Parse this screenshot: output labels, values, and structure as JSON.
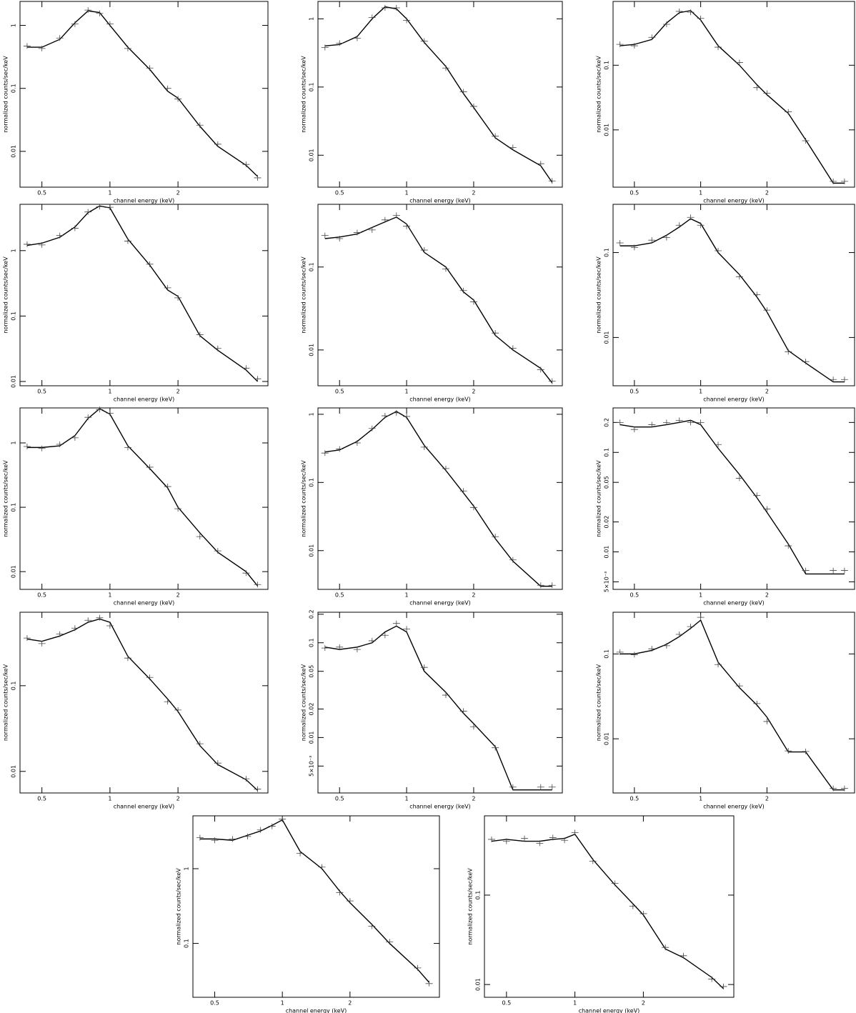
{
  "chart_data": [
    {
      "type": "line",
      "xlabel": "channel energy (keV)",
      "ylabel": "normalized counts/sec/keV",
      "log_x": true,
      "log_y": true,
      "xlim": [
        0.4,
        5
      ],
      "xticks": [
        0.5,
        1,
        2
      ],
      "ylim": [
        0.0027,
        2.4
      ],
      "yticks": [
        0.01,
        0.1,
        1
      ],
      "x": [
        0.43,
        0.5,
        0.6,
        0.7,
        0.8,
        0.9,
        1.0,
        1.2,
        1.5,
        1.8,
        2.0,
        2.5,
        3.0,
        4.0,
        4.5
      ],
      "series": [
        {
          "color": "#000000",
          "mode": "line",
          "values": [
            0.45,
            0.45,
            0.6,
            1.1,
            1.7,
            1.6,
            1.0,
            0.45,
            0.2,
            0.09,
            0.07,
            0.025,
            0.012,
            0.006,
            0.004
          ]
        },
        {
          "color": "#444444",
          "mode": "markers",
          "values": [
            0.47,
            0.43,
            0.63,
            1.05,
            1.75,
            1.55,
            1.05,
            0.43,
            0.21,
            0.1,
            0.068,
            0.026,
            0.013,
            0.0062,
            0.0038
          ]
        }
      ]
    },
    {
      "type": "line",
      "xlabel": "channel energy (keV)",
      "ylabel": "normalized counts/sec/keV",
      "log_x": true,
      "log_y": true,
      "xlim": [
        0.4,
        5
      ],
      "xticks": [
        0.5,
        1,
        2
      ],
      "ylim": [
        0.0034,
        1.8
      ],
      "yticks": [
        0.01,
        0.1,
        1
      ],
      "x": [
        0.43,
        0.5,
        0.6,
        0.7,
        0.8,
        0.9,
        1.0,
        1.2,
        1.5,
        1.8,
        2.0,
        2.5,
        3.0,
        4.0,
        4.5
      ],
      "series": [
        {
          "color": "#000000",
          "mode": "line",
          "values": [
            0.4,
            0.42,
            0.55,
            1.0,
            1.5,
            1.4,
            1.0,
            0.45,
            0.2,
            0.08,
            0.05,
            0.018,
            0.012,
            0.007,
            0.004
          ]
        },
        {
          "color": "#444444",
          "mode": "markers",
          "values": [
            0.38,
            0.44,
            0.52,
            1.05,
            1.45,
            1.45,
            0.95,
            0.47,
            0.19,
            0.085,
            0.052,
            0.019,
            0.013,
            0.0075,
            0.0042
          ]
        }
      ]
    },
    {
      "type": "line",
      "xlabel": "channel energy (keV)",
      "ylabel": "normalized counts/sec/keV",
      "log_x": true,
      "log_y": true,
      "xlim": [
        0.4,
        5
      ],
      "xticks": [
        0.5,
        1,
        2
      ],
      "ylim": [
        0.0013,
        0.97
      ],
      "yticks": [
        0.01,
        0.1
      ],
      "x": [
        0.43,
        0.5,
        0.6,
        0.7,
        0.8,
        0.9,
        1.0,
        1.2,
        1.5,
        1.8,
        2.0,
        2.5,
        3.0,
        4.0,
        4.5
      ],
      "series": [
        {
          "color": "#000000",
          "mode": "line",
          "values": [
            0.2,
            0.21,
            0.25,
            0.45,
            0.65,
            0.7,
            0.5,
            0.2,
            0.1,
            0.05,
            0.035,
            0.018,
            0.007,
            0.0015,
            0.0015
          ]
        },
        {
          "color": "#444444",
          "mode": "markers",
          "values": [
            0.21,
            0.2,
            0.27,
            0.43,
            0.68,
            0.66,
            0.53,
            0.19,
            0.11,
            0.045,
            0.037,
            0.019,
            0.0068,
            0.0016,
            0.0016
          ]
        }
      ]
    },
    {
      "type": "line",
      "xlabel": "channel energy (keV)",
      "ylabel": "normalized counts/sec/keV",
      "log_x": true,
      "log_y": true,
      "xlim": [
        0.4,
        5
      ],
      "xticks": [
        0.5,
        1,
        2
      ],
      "ylim": [
        0.0086,
        5.1
      ],
      "yticks": [
        0.01,
        0.1,
        1
      ],
      "x": [
        0.43,
        0.5,
        0.6,
        0.7,
        0.8,
        0.9,
        1.0,
        1.2,
        1.5,
        1.8,
        2.0,
        2.5,
        3.0,
        4.0,
        4.5
      ],
      "series": [
        {
          "color": "#000000",
          "mode": "line",
          "values": [
            1.2,
            1.3,
            1.6,
            2.3,
            3.8,
            4.8,
            4.5,
            1.5,
            0.6,
            0.25,
            0.2,
            0.05,
            0.03,
            0.015,
            0.01
          ]
        },
        {
          "color": "#444444",
          "mode": "markers",
          "values": [
            1.25,
            1.22,
            1.7,
            2.2,
            3.9,
            4.7,
            4.6,
            1.4,
            0.62,
            0.27,
            0.19,
            0.052,
            0.032,
            0.016,
            0.011
          ]
        }
      ]
    },
    {
      "type": "line",
      "xlabel": "channel energy (keV)",
      "ylabel": "normalized counts/sec/keV",
      "log_x": true,
      "log_y": true,
      "xlim": [
        0.4,
        5
      ],
      "xticks": [
        0.5,
        1,
        2
      ],
      "ylim": [
        0.0037,
        0.57
      ],
      "yticks": [
        0.01,
        0.1
      ],
      "x": [
        0.43,
        0.5,
        0.6,
        0.7,
        0.8,
        0.9,
        1.0,
        1.2,
        1.5,
        1.8,
        2.0,
        2.5,
        3.0,
        4.0,
        4.5
      ],
      "series": [
        {
          "color": "#000000",
          "mode": "line",
          "values": [
            0.22,
            0.23,
            0.25,
            0.3,
            0.35,
            0.4,
            0.33,
            0.15,
            0.1,
            0.05,
            0.04,
            0.015,
            0.01,
            0.006,
            0.004
          ]
        },
        {
          "color": "#444444",
          "mode": "markers",
          "values": [
            0.24,
            0.22,
            0.26,
            0.28,
            0.37,
            0.42,
            0.31,
            0.16,
            0.095,
            0.052,
            0.038,
            0.016,
            0.0105,
            0.0058,
            0.0042
          ]
        }
      ]
    },
    {
      "type": "line",
      "xlabel": "channel energy (keV)",
      "ylabel": "normalized counts/sec/keV",
      "log_x": true,
      "log_y": true,
      "xlim": [
        0.4,
        5
      ],
      "xticks": [
        0.5,
        1,
        2
      ],
      "ylim": [
        0.0027,
        0.37
      ],
      "yticks": [
        0.01,
        0.1
      ],
      "x": [
        0.43,
        0.5,
        0.6,
        0.7,
        0.8,
        0.9,
        1.0,
        1.2,
        1.5,
        1.8,
        2.0,
        2.5,
        3.0,
        4.0,
        4.5
      ],
      "series": [
        {
          "color": "#000000",
          "mode": "line",
          "values": [
            0.12,
            0.12,
            0.13,
            0.16,
            0.2,
            0.25,
            0.22,
            0.1,
            0.055,
            0.03,
            0.02,
            0.007,
            0.005,
            0.003,
            0.003
          ]
        },
        {
          "color": "#444444",
          "mode": "markers",
          "values": [
            0.13,
            0.115,
            0.14,
            0.15,
            0.21,
            0.26,
            0.21,
            0.105,
            0.052,
            0.032,
            0.021,
            0.0068,
            0.0052,
            0.0032,
            0.0032
          ]
        }
      ]
    },
    {
      "type": "line",
      "xlabel": "channel energy (keV)",
      "ylabel": "normalized counts/sec/keV",
      "log_x": true,
      "log_y": true,
      "xlim": [
        0.4,
        5
      ],
      "xticks": [
        0.5,
        1,
        2
      ],
      "ylim": [
        0.0053,
        3.5
      ],
      "yticks": [
        0.01,
        0.1,
        1
      ],
      "x": [
        0.43,
        0.5,
        0.6,
        0.7,
        0.8,
        0.9,
        1.0,
        1.2,
        1.5,
        1.8,
        2.0,
        2.5,
        3.0,
        4.0,
        4.5
      ],
      "series": [
        {
          "color": "#000000",
          "mode": "line",
          "values": [
            0.85,
            0.85,
            0.9,
            1.3,
            2.4,
            3.4,
            2.8,
            0.9,
            0.4,
            0.2,
            0.1,
            0.04,
            0.02,
            0.01,
            0.006
          ]
        },
        {
          "color": "#444444",
          "mode": "markers",
          "values": [
            0.88,
            0.82,
            0.95,
            1.2,
            2.5,
            3.3,
            2.9,
            0.85,
            0.42,
            0.21,
            0.095,
            0.035,
            0.021,
            0.0095,
            0.0063
          ]
        }
      ]
    },
    {
      "type": "line",
      "xlabel": "channel energy (keV)",
      "ylabel": "normalized counts/sec/keV",
      "log_x": true,
      "log_y": true,
      "xlim": [
        0.4,
        5
      ],
      "xticks": [
        0.5,
        1,
        2
      ],
      "ylim": [
        0.0027,
        1.24
      ],
      "yticks": [
        0.01,
        0.1,
        1
      ],
      "x": [
        0.43,
        0.5,
        0.6,
        0.7,
        0.8,
        0.9,
        1.0,
        1.2,
        1.5,
        1.8,
        2.0,
        2.5,
        3.0,
        4.0,
        4.5
      ],
      "series": [
        {
          "color": "#000000",
          "mode": "line",
          "values": [
            0.28,
            0.3,
            0.4,
            0.6,
            0.9,
            1.1,
            0.9,
            0.35,
            0.15,
            0.07,
            0.045,
            0.015,
            0.007,
            0.003,
            0.003
          ]
        },
        {
          "color": "#444444",
          "mode": "markers",
          "values": [
            0.27,
            0.31,
            0.38,
            0.62,
            0.95,
            1.05,
            0.93,
            0.33,
            0.16,
            0.075,
            0.043,
            0.016,
            0.0073,
            0.0031,
            0.0031
          ]
        }
      ]
    },
    {
      "type": "line",
      "xlabel": "channel energy (keV)",
      "ylabel": "normalized counts/sec/keV",
      "log_x": true,
      "log_y": true,
      "xlim": [
        0.4,
        5
      ],
      "xticks": [
        0.5,
        1,
        2
      ],
      "ylim": [
        0.0042,
        0.28
      ],
      "yticks": [
        {
          "value": 0.005,
          "label": "5×10⁻³"
        },
        0.01,
        0.02,
        0.05,
        0.1,
        0.2
      ],
      "x": [
        0.43,
        0.5,
        0.6,
        0.7,
        0.8,
        0.9,
        1.0,
        1.2,
        1.5,
        1.8,
        2.0,
        2.5,
        3.0,
        4.0,
        4.5
      ],
      "series": [
        {
          "color": "#000000",
          "mode": "line",
          "values": [
            0.19,
            0.18,
            0.18,
            0.19,
            0.2,
            0.21,
            0.19,
            0.11,
            0.06,
            0.035,
            0.025,
            0.012,
            0.006,
            0.006,
            0.006
          ]
        },
        {
          "color": "#444444",
          "mode": "markers",
          "values": [
            0.2,
            0.17,
            0.19,
            0.2,
            0.21,
            0.2,
            0.2,
            0.12,
            0.055,
            0.037,
            0.027,
            0.0115,
            0.0065,
            0.0065,
            0.0065
          ]
        }
      ]
    },
    {
      "type": "line",
      "xlabel": "channel energy (keV)",
      "ylabel": "normalized counts/sec/keV",
      "log_x": true,
      "log_y": true,
      "xlim": [
        0.4,
        5
      ],
      "xticks": [
        0.5,
        1,
        2
      ],
      "ylim": [
        0.0056,
        0.72
      ],
      "yticks": [
        0.01,
        0.1
      ],
      "x": [
        0.43,
        0.5,
        0.6,
        0.7,
        0.8,
        0.9,
        1.0,
        1.2,
        1.5,
        1.8,
        2.0,
        2.5,
        3.0,
        4.0,
        4.5
      ],
      "series": [
        {
          "color": "#000000",
          "mode": "line",
          "values": [
            0.35,
            0.33,
            0.38,
            0.45,
            0.55,
            0.6,
            0.55,
            0.22,
            0.12,
            0.07,
            0.05,
            0.02,
            0.012,
            0.008,
            0.006
          ]
        },
        {
          "color": "#444444",
          "mode": "markers",
          "values": [
            0.36,
            0.31,
            0.4,
            0.47,
            0.58,
            0.62,
            0.5,
            0.21,
            0.125,
            0.065,
            0.052,
            0.021,
            0.0125,
            0.0082,
            0.0062
          ]
        }
      ]
    },
    {
      "type": "line",
      "xlabel": "channel energy (keV)",
      "ylabel": "normalized counts/sec/keV",
      "log_x": true,
      "log_y": true,
      "xlim": [
        0.4,
        5
      ],
      "xticks": [
        0.5,
        1,
        2
      ],
      "ylim": [
        0.0026,
        0.21
      ],
      "yticks": [
        {
          "value": 0.005,
          "label": "5×10⁻³"
        },
        0.01,
        0.02,
        0.05,
        0.1,
        0.2
      ],
      "x": [
        0.43,
        0.5,
        0.6,
        0.7,
        0.8,
        0.9,
        1.0,
        1.2,
        1.5,
        1.8,
        2.0,
        2.5,
        3.0,
        4.0,
        4.5
      ],
      "series": [
        {
          "color": "#000000",
          "mode": "line",
          "values": [
            0.09,
            0.085,
            0.09,
            0.1,
            0.13,
            0.15,
            0.13,
            0.05,
            0.03,
            0.018,
            0.014,
            0.008,
            0.0028,
            0.0028,
            0.0028
          ]
        },
        {
          "color": "#444444",
          "mode": "markers",
          "values": [
            0.088,
            0.09,
            0.085,
            0.105,
            0.12,
            0.16,
            0.14,
            0.055,
            0.028,
            0.019,
            0.013,
            0.0078,
            0.003,
            0.003,
            0.003
          ]
        }
      ]
    },
    {
      "type": "line",
      "xlabel": "channel energy (keV)",
      "ylabel": "normalized counts/sec/keV",
      "log_x": true,
      "log_y": true,
      "xlim": [
        0.4,
        5
      ],
      "xticks": [
        0.5,
        1,
        2
      ],
      "ylim": [
        0.0023,
        0.31
      ],
      "yticks": [
        0.01,
        0.1
      ],
      "x": [
        0.43,
        0.5,
        0.6,
        0.7,
        0.8,
        0.9,
        1.0,
        1.2,
        1.5,
        1.8,
        2.0,
        2.5,
        3.0,
        4.0,
        4.5
      ],
      "series": [
        {
          "color": "#000000",
          "mode": "line",
          "values": [
            0.1,
            0.1,
            0.11,
            0.13,
            0.16,
            0.2,
            0.25,
            0.08,
            0.04,
            0.025,
            0.018,
            0.007,
            0.007,
            0.0025,
            0.0025
          ]
        },
        {
          "color": "#444444",
          "mode": "markers",
          "values": [
            0.105,
            0.098,
            0.115,
            0.125,
            0.17,
            0.21,
            0.27,
            0.075,
            0.042,
            0.026,
            0.016,
            0.0072,
            0.0071,
            0.0026,
            0.0026
          ]
        }
      ]
    },
    {
      "type": "line",
      "xlabel": "channel energy (keV)",
      "ylabel": "normalized counts/sec/keV",
      "log_x": true,
      "log_y": true,
      "xlim": [
        0.4,
        5
      ],
      "xticks": [
        0.5,
        1,
        2
      ],
      "ylim": [
        0.019,
        5.1
      ],
      "yticks": [
        0.1,
        1
      ],
      "x": [
        0.43,
        0.5,
        0.6,
        0.7,
        0.8,
        0.9,
        1.0,
        1.2,
        1.5,
        1.8,
        2.0,
        2.5,
        3.0,
        4.0,
        4.5
      ],
      "series": [
        {
          "color": "#000000",
          "mode": "line",
          "values": [
            2.5,
            2.5,
            2.4,
            2.8,
            3.2,
            3.8,
            4.5,
            1.7,
            1.0,
            0.5,
            0.35,
            0.18,
            0.1,
            0.045,
            0.03
          ]
        },
        {
          "color": "#444444",
          "mode": "markers",
          "values": [
            2.6,
            2.4,
            2.5,
            2.7,
            3.3,
            3.7,
            4.6,
            1.6,
            1.05,
            0.48,
            0.37,
            0.17,
            0.105,
            0.047,
            0.029
          ]
        }
      ]
    },
    {
      "type": "line",
      "xlabel": "channel energy (keV)",
      "ylabel": "normalized counts/sec/keV",
      "log_x": true,
      "log_y": true,
      "xlim": [
        0.4,
        5
      ],
      "xticks": [
        0.5,
        1,
        2
      ],
      "ylim": [
        0.0072,
        0.77
      ],
      "yticks": [
        0.01,
        0.1
      ],
      "x": [
        0.43,
        0.5,
        0.6,
        0.7,
        0.8,
        0.9,
        1.0,
        1.2,
        1.5,
        1.8,
        2.0,
        2.5,
        3.0,
        4.0,
        4.5
      ],
      "series": [
        {
          "color": "#000000",
          "mode": "line",
          "values": [
            0.4,
            0.42,
            0.4,
            0.4,
            0.42,
            0.43,
            0.48,
            0.25,
            0.13,
            0.08,
            0.06,
            0.025,
            0.02,
            0.012,
            0.009
          ]
        },
        {
          "color": "#444444",
          "mode": "markers",
          "values": [
            0.42,
            0.4,
            0.43,
            0.38,
            0.44,
            0.41,
            0.5,
            0.24,
            0.135,
            0.075,
            0.062,
            0.026,
            0.021,
            0.0115,
            0.0095
          ]
        }
      ]
    }
  ]
}
